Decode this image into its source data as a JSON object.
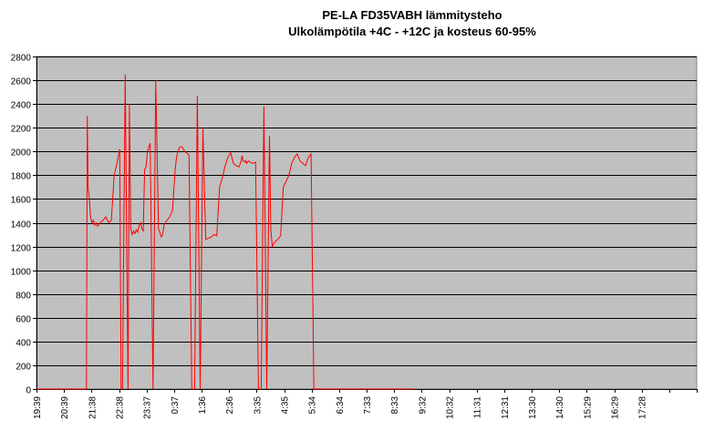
{
  "chart_data": {
    "type": "line",
    "title": "PE-LA FD35VABH lämmitysteho",
    "subtitle": "Ulkolämpötila  +4C - +12C ja kosteus 60-95%",
    "xlabel": "",
    "ylabel": "",
    "ylim": [
      0,
      2800
    ],
    "yticks": [
      0,
      200,
      400,
      600,
      800,
      1000,
      1200,
      1400,
      1600,
      1800,
      2000,
      2200,
      2400,
      2600,
      2800
    ],
    "grid": "horizontal",
    "plot_background": "#c0c0c0",
    "line_color": "#ff0000",
    "x_tick_labels": [
      "19:39",
      "20:39",
      "21:38",
      "22:38",
      "23:37",
      "0:37",
      "1:36",
      "2:36",
      "3:35",
      "4:35",
      "5:34",
      "6:34",
      "7:33",
      "8:33",
      "9:32",
      "10:32",
      "11:31",
      "12:31",
      "13:30",
      "14:30",
      "15:29",
      "16:29",
      "17:28"
    ],
    "x_tick_step_hours": 0.9917,
    "x_start_time": "19:39",
    "x_end_time": "19:31",
    "series": [
      {
        "time_offset_hours": [
          0,
          1.8,
          1.83,
          1.86,
          1.9,
          1.95,
          2.0,
          2.05,
          2.1,
          2.15,
          2.2,
          2.3,
          2.4,
          2.5,
          2.6,
          2.7,
          2.8,
          2.9,
          3.0,
          3.05,
          3.1,
          3.2,
          3.3,
          3.35,
          3.4,
          3.45,
          3.5,
          3.55,
          3.6,
          3.65,
          3.7,
          3.75,
          3.8,
          3.85,
          3.9,
          3.95,
          4.0,
          4.1,
          4.2,
          4.3,
          4.4,
          4.5,
          4.55,
          4.6,
          4.7,
          4.8,
          4.9,
          5.0,
          5.05,
          5.1,
          5.15,
          5.2,
          5.25,
          5.3,
          5.35,
          5.4,
          5.45,
          5.5,
          5.6,
          5.7,
          5.8,
          5.9,
          6.0,
          6.1,
          6.2,
          6.3,
          6.4,
          6.5,
          6.6,
          6.7,
          6.8,
          6.9,
          7.0,
          7.1,
          7.2,
          7.3,
          7.38,
          7.4,
          7.42,
          7.45,
          7.5,
          7.52,
          7.55,
          7.58,
          7.6,
          7.65,
          7.7,
          7.8,
          7.9,
          8.0,
          8.1,
          8.2,
          8.3,
          8.4,
          8.45,
          8.5,
          8.6,
          8.7,
          8.8,
          8.9,
          9.0,
          9.1,
          9.2,
          9.3,
          9.4,
          9.5,
          9.6,
          9.7,
          9.8,
          9.9,
          10.0,
          10.1,
          10.2,
          10.3,
          10.4,
          10.5,
          10.6,
          10.7,
          10.8,
          10.9,
          11.0,
          11.1,
          11.2,
          11.3,
          11.4,
          11.5,
          11.55,
          11.6,
          11.62,
          11.65,
          11.7,
          11.72,
          11.75,
          11.8,
          11.85,
          11.9,
          11.95,
          12.0,
          12.05,
          12.1,
          12.15,
          12.2,
          12.3,
          12.4,
          12.5,
          12.6,
          12.7,
          12.8,
          12.9,
          13.0,
          13.1,
          13.2,
          13.3,
          13.4,
          13.5,
          13.6,
          13.62,
          13.64
        ],
        "watts": [
          0,
          0,
          2300,
          1700,
          1620,
          1450,
          1400,
          1420,
          1380,
          1400,
          1370,
          1400,
          1420,
          1450,
          1400,
          1420,
          1800,
          1900,
          2020,
          0,
          0,
          2650,
          0,
          2400,
          1350,
          1300,
          1330,
          1310,
          1340,
          1320,
          1380,
          1400,
          1350,
          1330,
          1850,
          1870,
          2000,
          2070,
          0,
          2600,
          1350,
          1280,
          1300,
          1380,
          1420,
          1450,
          1500,
          1850,
          1950,
          2000,
          2030,
          2040,
          2040,
          2020,
          2000,
          1990,
          1980,
          1970,
          0,
          0,
          2470,
          0,
          2200,
          1260,
          1270,
          1280,
          1300,
          1290,
          1700,
          1780,
          1880,
          1950,
          1990,
          1900,
          1880,
          1870,
          1920,
          1950,
          1960,
          1920,
          1920,
          1910,
          1920,
          1900,
          1910,
          1920,
          1910,
          1900,
          1910,
          0,
          0,
          2380,
          0,
          2130,
          1340,
          1200,
          1240,
          1260,
          1290,
          1700,
          1750,
          1800,
          1900,
          1950,
          1980,
          1920,
          1900,
          1880,
          1950,
          1980,
          0,
          0,
          0,
          0,
          0,
          0,
          0,
          0,
          0,
          0,
          0,
          0,
          0,
          0,
          0,
          0,
          0,
          0,
          0,
          0,
          0,
          0,
          0,
          0,
          0,
          0,
          0,
          0,
          0,
          0,
          0,
          0,
          0,
          0,
          0,
          0,
          0,
          0,
          0,
          0,
          0,
          0,
          0,
          0,
          0,
          0,
          0
        ]
      }
    ]
  }
}
